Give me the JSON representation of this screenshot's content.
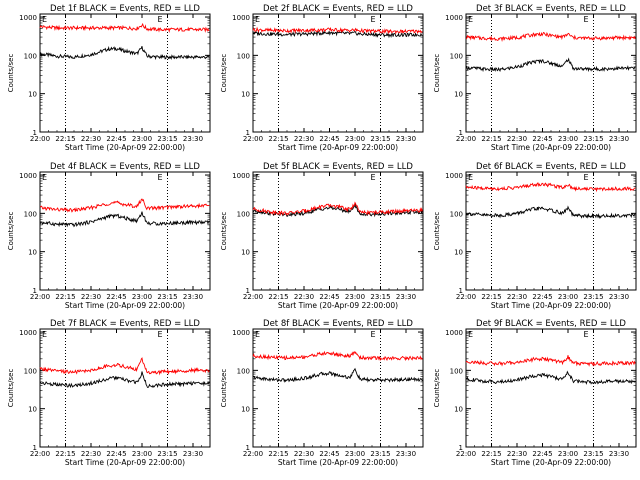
{
  "style": {
    "events_color": "#000000",
    "lld_color": "#ff0000",
    "background": "#ffffff",
    "dotted_marker_color": "#000000"
  },
  "shared": {
    "xlabel": "Start Time (20-Apr-09 22:00:00)",
    "ylabel": "Counts/sec",
    "x_tick_labels": [
      "22:00",
      "22:15",
      "22:30",
      "22:45",
      "23:00",
      "23:15",
      "23:30"
    ],
    "y_tick_labels": [
      "1",
      "10",
      "100",
      "1000"
    ],
    "corner_marker_left": "E",
    "corner_marker_right": "E"
  },
  "chart_data": [
    {
      "type": "line",
      "title": "Det 1f BLACK = Events, RED = LLD",
      "xlim": [
        "22:00",
        "23:40"
      ],
      "ylim": [
        1,
        1200
      ],
      "y_scale": "log",
      "dotted_lines_at": [
        "22:15",
        "23:15"
      ],
      "x": [
        "22:00",
        "22:10",
        "22:20",
        "22:30",
        "22:40",
        "22:45",
        "22:50",
        "22:57",
        "23:00",
        "23:03",
        "23:10",
        "23:20",
        "23:30",
        "23:40"
      ],
      "series": [
        {
          "name": "Events",
          "values": [
            110,
            95,
            90,
            105,
            145,
            150,
            130,
            110,
            160,
            95,
            90,
            90,
            90,
            90
          ]
        },
        {
          "name": "LLD",
          "values": [
            560,
            520,
            520,
            520,
            520,
            520,
            520,
            500,
            620,
            490,
            470,
            470,
            470,
            470
          ]
        }
      ]
    },
    {
      "type": "line",
      "title": "Det 2f BLACK = Events, RED = LLD",
      "xlim": [
        "22:00",
        "23:40"
      ],
      "ylim": [
        1,
        1200
      ],
      "y_scale": "log",
      "dotted_lines_at": [
        "22:15",
        "23:15"
      ],
      "x": [
        "22:00",
        "22:10",
        "22:20",
        "22:30",
        "22:40",
        "22:45",
        "22:50",
        "22:57",
        "23:00",
        "23:03",
        "23:10",
        "23:20",
        "23:30",
        "23:40"
      ],
      "series": [
        {
          "name": "Events",
          "values": [
            380,
            360,
            350,
            360,
            380,
            390,
            380,
            370,
            380,
            360,
            350,
            340,
            340,
            350
          ]
        },
        {
          "name": "LLD",
          "values": [
            470,
            450,
            440,
            450,
            460,
            470,
            460,
            450,
            460,
            440,
            430,
            420,
            420,
            430
          ]
        }
      ]
    },
    {
      "type": "line",
      "title": "Det 3f BLACK = Events, RED = LLD",
      "xlim": [
        "22:00",
        "23:40"
      ],
      "ylim": [
        1,
        1200
      ],
      "y_scale": "log",
      "dotted_lines_at": [
        "22:15",
        "23:15"
      ],
      "x": [
        "22:00",
        "22:10",
        "22:20",
        "22:30",
        "22:40",
        "22:45",
        "22:50",
        "22:57",
        "23:00",
        "23:03",
        "23:10",
        "23:20",
        "23:30",
        "23:40"
      ],
      "series": [
        {
          "name": "Events",
          "values": [
            48,
            44,
            42,
            50,
            68,
            72,
            62,
            52,
            80,
            46,
            44,
            44,
            46,
            46
          ]
        },
        {
          "name": "LLD",
          "values": [
            300,
            280,
            270,
            290,
            350,
            360,
            330,
            300,
            360,
            290,
            280,
            280,
            290,
            290
          ]
        }
      ]
    },
    {
      "type": "line",
      "title": "Det 4f BLACK = Events, RED = LLD",
      "xlim": [
        "22:00",
        "23:40"
      ],
      "ylim": [
        1,
        1200
      ],
      "y_scale": "log",
      "dotted_lines_at": [
        "22:15",
        "23:15"
      ],
      "x": [
        "22:00",
        "22:10",
        "22:20",
        "22:30",
        "22:40",
        "22:45",
        "22:50",
        "22:57",
        "23:00",
        "23:03",
        "23:10",
        "23:20",
        "23:30",
        "23:40"
      ],
      "series": [
        {
          "name": "Events",
          "values": [
            58,
            52,
            50,
            60,
            82,
            88,
            75,
            64,
            105,
            55,
            54,
            56,
            58,
            58
          ]
        },
        {
          "name": "LLD",
          "values": [
            140,
            125,
            120,
            140,
            180,
            190,
            170,
            150,
            240,
            135,
            140,
            150,
            155,
            160
          ]
        }
      ]
    },
    {
      "type": "line",
      "title": "Det 5f BLACK = Events, RED = LLD",
      "xlim": [
        "22:00",
        "23:40"
      ],
      "ylim": [
        1,
        1200
      ],
      "y_scale": "log",
      "dotted_lines_at": [
        "22:15",
        "23:15"
      ],
      "x": [
        "22:00",
        "22:10",
        "22:20",
        "22:30",
        "22:40",
        "22:45",
        "22:50",
        "22:57",
        "23:00",
        "23:03",
        "23:10",
        "23:20",
        "23:30",
        "23:40"
      ],
      "series": [
        {
          "name": "Events",
          "values": [
            120,
            100,
            90,
            100,
            130,
            140,
            130,
            110,
            165,
            95,
            95,
            100,
            105,
            110
          ]
        },
        {
          "name": "LLD",
          "values": [
            130,
            110,
            100,
            115,
            150,
            160,
            150,
            125,
            185,
            105,
            105,
            110,
            115,
            120
          ]
        }
      ]
    },
    {
      "type": "line",
      "title": "Det 6f BLACK = Events, RED = LLD",
      "xlim": [
        "22:00",
        "23:40"
      ],
      "ylim": [
        1,
        1200
      ],
      "y_scale": "log",
      "dotted_lines_at": [
        "22:15",
        "23:15"
      ],
      "x": [
        "22:00",
        "22:10",
        "22:20",
        "22:30",
        "22:40",
        "22:45",
        "22:50",
        "22:57",
        "23:00",
        "23:03",
        "23:10",
        "23:20",
        "23:30",
        "23:40"
      ],
      "series": [
        {
          "name": "Events",
          "values": [
            100,
            90,
            88,
            100,
            130,
            135,
            120,
            100,
            140,
            88,
            85,
            85,
            88,
            90
          ]
        },
        {
          "name": "LLD",
          "values": [
            480,
            450,
            440,
            470,
            560,
            580,
            540,
            480,
            560,
            450,
            440,
            430,
            440,
            440
          ]
        }
      ]
    },
    {
      "type": "line",
      "title": "Det 7f BLACK = Events, RED = LLD",
      "xlim": [
        "22:00",
        "23:40"
      ],
      "ylim": [
        1,
        1200
      ],
      "y_scale": "log",
      "dotted_lines_at": [
        "22:15",
        "23:15"
      ],
      "x": [
        "22:00",
        "22:10",
        "22:20",
        "22:30",
        "22:40",
        "22:45",
        "22:50",
        "22:57",
        "23:00",
        "23:03",
        "23:10",
        "23:20",
        "23:30",
        "23:40"
      ],
      "series": [
        {
          "name": "Events",
          "values": [
            48,
            42,
            40,
            46,
            60,
            64,
            56,
            48,
            85,
            38,
            42,
            44,
            46,
            46
          ]
        },
        {
          "name": "LLD",
          "values": [
            110,
            95,
            90,
            100,
            130,
            140,
            125,
            105,
            200,
            85,
            90,
            95,
            100,
            100
          ]
        }
      ]
    },
    {
      "type": "line",
      "title": "Det 8f BLACK = Events, RED = LLD",
      "xlim": [
        "22:00",
        "23:40"
      ],
      "ylim": [
        1,
        1200
      ],
      "y_scale": "log",
      "dotted_lines_at": [
        "22:15",
        "23:15"
      ],
      "x": [
        "22:00",
        "22:10",
        "22:20",
        "22:30",
        "22:40",
        "22:45",
        "22:50",
        "22:57",
        "23:00",
        "23:03",
        "23:10",
        "23:20",
        "23:30",
        "23:40"
      ],
      "series": [
        {
          "name": "Events",
          "values": [
            65,
            58,
            55,
            62,
            80,
            85,
            75,
            65,
            105,
            58,
            56,
            56,
            58,
            58
          ]
        },
        {
          "name": "LLD",
          "values": [
            240,
            220,
            210,
            225,
            270,
            280,
            260,
            230,
            300,
            215,
            210,
            205,
            210,
            210
          ]
        }
      ]
    },
    {
      "type": "line",
      "title": "Det 9f BLACK = Events, RED = LLD",
      "xlim": [
        "22:00",
        "23:40"
      ],
      "ylim": [
        1,
        1200
      ],
      "y_scale": "log",
      "dotted_lines_at": [
        "22:15",
        "23:15"
      ],
      "x": [
        "22:00",
        "22:10",
        "22:20",
        "22:30",
        "22:40",
        "22:45",
        "22:50",
        "22:57",
        "23:00",
        "23:03",
        "23:10",
        "23:20",
        "23:30",
        "23:40"
      ],
      "series": [
        {
          "name": "Events",
          "values": [
            60,
            52,
            50,
            56,
            72,
            76,
            68,
            58,
            90,
            52,
            50,
            50,
            52,
            52
          ]
        },
        {
          "name": "LLD",
          "values": [
            170,
            155,
            150,
            160,
            195,
            200,
            185,
            160,
            225,
            155,
            150,
            150,
            155,
            155
          ]
        }
      ]
    }
  ]
}
